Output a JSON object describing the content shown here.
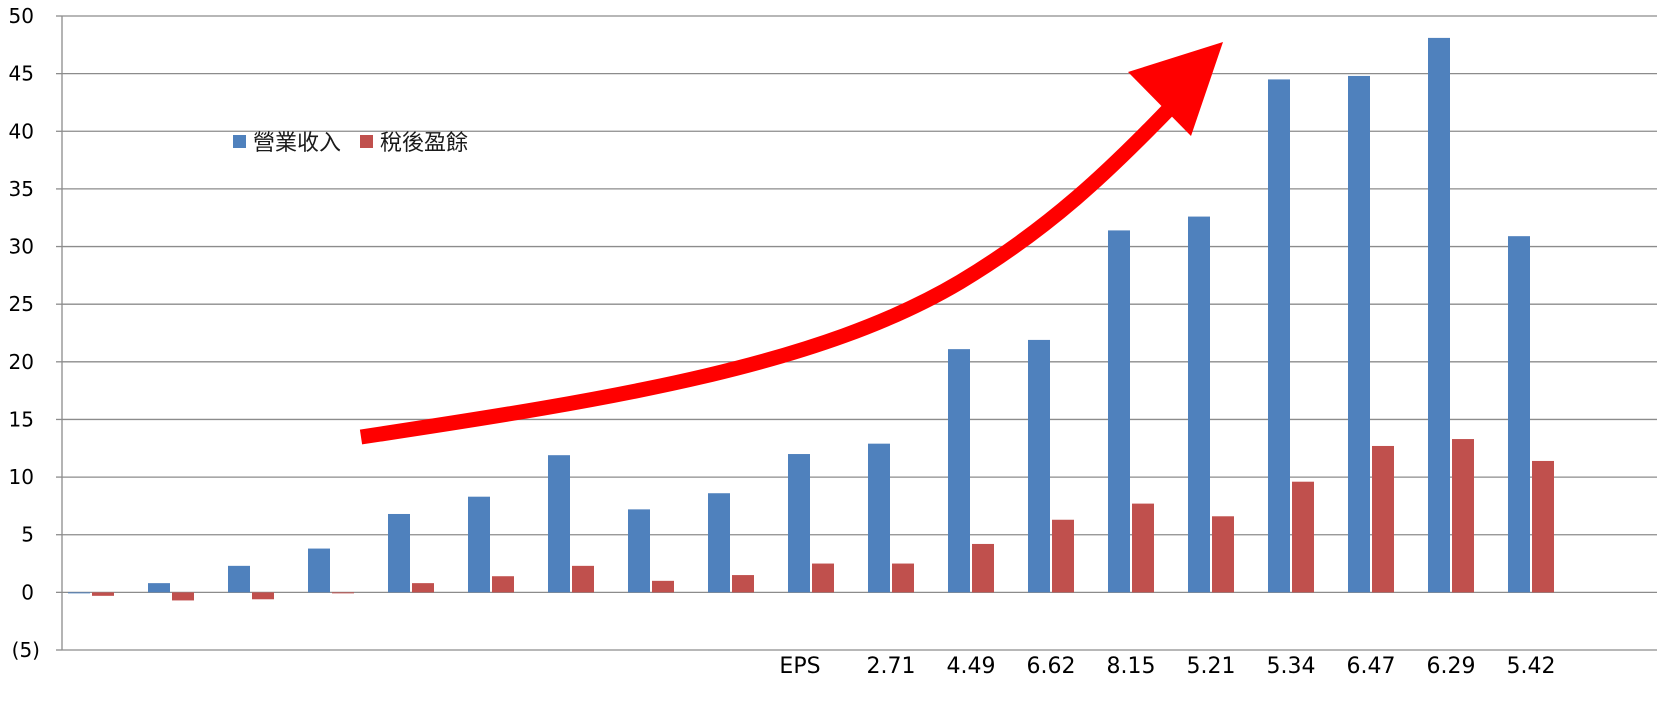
{
  "chart_data": {
    "type": "bar",
    "ylim": [
      -5,
      50
    ],
    "y_ticks": [
      {
        "value": 50,
        "label": "50"
      },
      {
        "value": 45,
        "label": "45"
      },
      {
        "value": 40,
        "label": "40"
      },
      {
        "value": 35,
        "label": "35"
      },
      {
        "value": 30,
        "label": "30"
      },
      {
        "value": 25,
        "label": "25"
      },
      {
        "value": 20,
        "label": "20"
      },
      {
        "value": 15,
        "label": "15"
      },
      {
        "value": 10,
        "label": "10"
      },
      {
        "value": 5,
        "label": "5"
      },
      {
        "value": 0,
        "label": "0"
      },
      {
        "value": -5,
        "label": "(5)"
      }
    ],
    "negative_tick_color": "#ff0000",
    "grid": true,
    "legend_position": "upper-left",
    "series": [
      {
        "name": "營業收入",
        "color": "#4f81bd",
        "values": [
          0,
          0.8,
          2.3,
          3.8,
          6.8,
          8.3,
          11.9,
          7.2,
          8.6,
          12.0,
          12.9,
          21.1,
          21.9,
          31.4,
          32.6,
          44.5,
          44.8,
          48.1,
          30.9
        ]
      },
      {
        "name": "稅後盈餘",
        "color": "#c0504d",
        "values": [
          -0.3,
          -0.7,
          -0.6,
          0,
          0.8,
          1.4,
          2.3,
          1.0,
          1.5,
          2.5,
          2.5,
          4.2,
          6.3,
          7.7,
          6.6,
          9.6,
          12.7,
          13.3,
          11.4
        ]
      }
    ],
    "eps_labels": [
      {
        "text": "EPS",
        "index": 9
      },
      {
        "text": "2.71",
        "index": 10
      },
      {
        "text": "4.49",
        "index": 11
      },
      {
        "text": "6.62",
        "index": 12
      },
      {
        "text": "8.15",
        "index": 13
      },
      {
        "text": "5.21",
        "index": 14
      },
      {
        "text": "5.34",
        "index": 15
      },
      {
        "text": "6.47",
        "index": 16
      },
      {
        "text": "6.29",
        "index": 17
      },
      {
        "text": "5.42",
        "index": 18
      }
    ],
    "trend_arrow": {
      "color": "#ff0000",
      "direction": "up-right"
    }
  }
}
